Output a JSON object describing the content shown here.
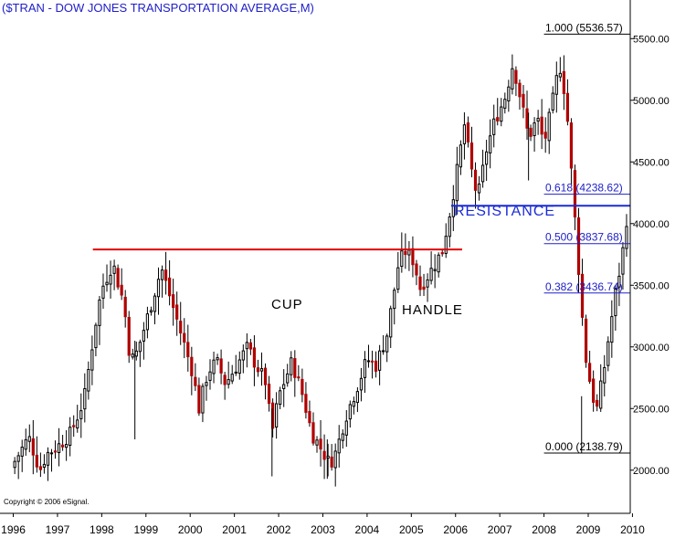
{
  "chart_data": {
    "type": "candlestick",
    "title": "($TRAN - DOW JONES TRANSPORTATION AVERAGE,M)",
    "copyright": "Copyright © 2006 eSignal.",
    "x_labels": [
      "1996",
      "1997",
      "1998",
      "1999",
      "2000",
      "2001",
      "2002",
      "2003",
      "2004",
      "2005",
      "2006",
      "2007",
      "2008",
      "2009",
      "2010"
    ],
    "y_ticks": [
      "2000.00",
      "2500.00",
      "3000.00",
      "3500.00",
      "4000.00",
      "4500.00",
      "5000.00",
      "5500.00"
    ],
    "ylim": [
      1650,
      5680
    ],
    "xlim": [
      1995.7,
      2009.95
    ],
    "annotations": {
      "cup": "CUP",
      "handle": "HANDLE",
      "resistance": "RESISTANCE"
    },
    "fib_levels": [
      {
        "label": "1.000 (5536.57)",
        "value": 5536.57
      },
      {
        "label": "0.618 (4238.62)",
        "value": 4238.62
      },
      {
        "label": "0.500 (3837.68)",
        "value": 3837.68
      },
      {
        "label": "0.382 (3436.74)",
        "value": 3436.74
      },
      {
        "label": "0.000 (2138.79)",
        "value": 2138.79
      }
    ],
    "resistance_red": {
      "value": 3790,
      "x_start": 1997.8,
      "x_end": 2006.15
    },
    "resistance_blue": {
      "value": 4145,
      "x_start": 2005.9,
      "x_end": 2009.95
    },
    "colors": {
      "up": "#000000",
      "down": "#b00000",
      "red_line": "#e00000",
      "blue_line": "#1a2bd6",
      "fib_line": "#2020c8"
    },
    "anchors": [
      [
        1995.95,
        2020
      ],
      [
        1996.35,
        2270
      ],
      [
        1996.6,
        2000
      ],
      [
        1996.75,
        2130
      ],
      [
        1997.0,
        2190
      ],
      [
        1997.3,
        2300
      ],
      [
        1997.6,
        2570
      ],
      [
        1997.85,
        3170
      ],
      [
        1998.0,
        3470
      ],
      [
        1998.25,
        3680
      ],
      [
        1998.5,
        3350
      ],
      [
        1998.65,
        2880
      ],
      [
        1998.8,
        2960
      ],
      [
        1999.0,
        3200
      ],
      [
        1999.2,
        3450
      ],
      [
        1999.35,
        3640
      ],
      [
        1999.55,
        3400
      ],
      [
        1999.8,
        3100
      ],
      [
        2000.05,
        2800
      ],
      [
        2000.2,
        2500
      ],
      [
        2000.4,
        2800
      ],
      [
        2000.6,
        2880
      ],
      [
        2000.8,
        2700
      ],
      [
        2001.05,
        2850
      ],
      [
        2001.3,
        3000
      ],
      [
        2001.45,
        2880
      ],
      [
        2001.7,
        2720
      ],
      [
        2001.85,
        2300
      ],
      [
        2002.0,
        2600
      ],
      [
        2002.3,
        2880
      ],
      [
        2002.55,
        2600
      ],
      [
        2002.75,
        2300
      ],
      [
        2003.0,
        2150
      ],
      [
        2003.15,
        2050
      ],
      [
        2003.3,
        2150
      ],
      [
        2003.5,
        2420
      ],
      [
        2003.8,
        2700
      ],
      [
        2004.0,
        2900
      ],
      [
        2004.2,
        2850
      ],
      [
        2004.45,
        3100
      ],
      [
        2004.7,
        3650
      ],
      [
        2004.85,
        3780
      ],
      [
        2005.05,
        3700
      ],
      [
        2005.2,
        3480
      ],
      [
        2005.5,
        3650
      ],
      [
        2005.7,
        3780
      ],
      [
        2005.85,
        4050
      ],
      [
        2006.0,
        4350
      ],
      [
        2006.2,
        4800
      ],
      [
        2006.35,
        4450
      ],
      [
        2006.5,
        4200
      ],
      [
        2006.7,
        4600
      ],
      [
        2006.9,
        4850
      ],
      [
        2007.1,
        5000
      ],
      [
        2007.3,
        5300
      ],
      [
        2007.45,
        5050
      ],
      [
        2007.65,
        4700
      ],
      [
        2007.85,
        4850
      ],
      [
        2008.0,
        4650
      ],
      [
        2008.15,
        4900
      ],
      [
        2008.35,
        5300
      ],
      [
        2008.5,
        5000
      ],
      [
        2008.6,
        4500
      ],
      [
        2008.75,
        3800
      ],
      [
        2008.85,
        3300
      ],
      [
        2008.95,
        2900
      ],
      [
        2009.1,
        2600
      ],
      [
        2009.2,
        2500
      ],
      [
        2009.35,
        2800
      ],
      [
        2009.45,
        3050
      ],
      [
        2009.6,
        3400
      ],
      [
        2009.75,
        3700
      ],
      [
        2009.85,
        3950
      ],
      [
        2009.9,
        4200
      ]
    ]
  }
}
